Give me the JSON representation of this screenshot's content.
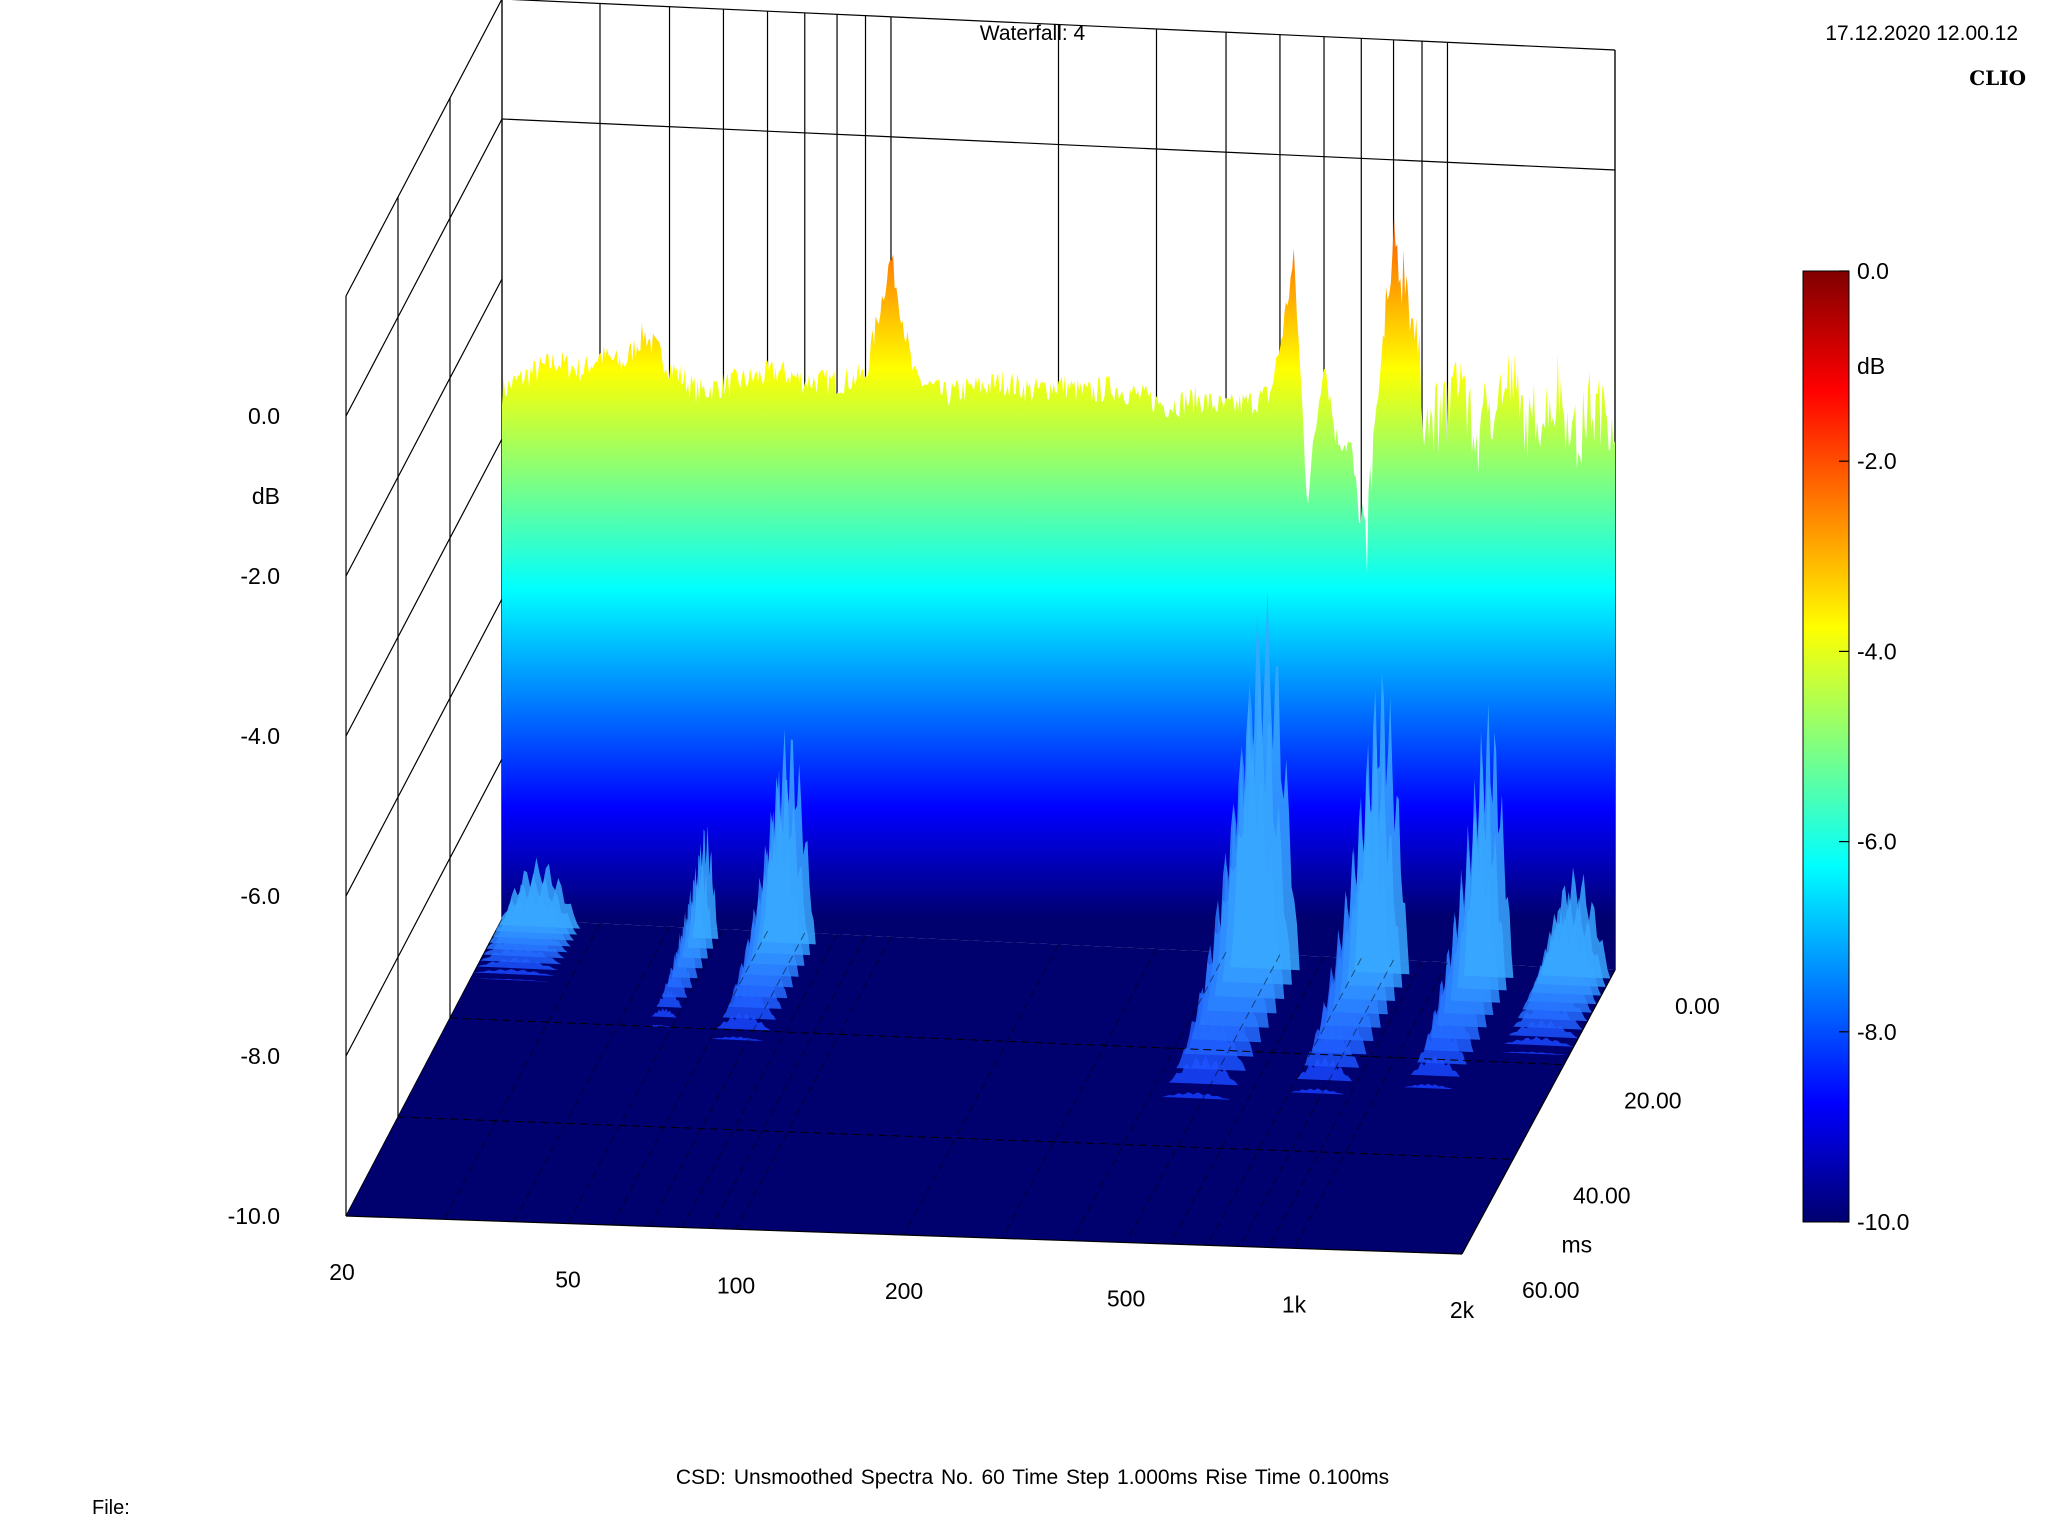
{
  "header": {
    "title": "Waterfall: 4",
    "timestamp": "17.12.2020 12.00.12",
    "logo": "CLIO"
  },
  "footer": {
    "status": "CSD:   Unsmoothed   Spectra No. 60   Time Step 1.000ms   Rise Time 0.100ms",
    "file_label": "File:"
  },
  "colors": {
    "grid": "#000000",
    "floor": "#00006e",
    "scale": [
      "#00006e",
      "#0000ff",
      "#0080ff",
      "#00ffff",
      "#80ff80",
      "#ffff00",
      "#ff8000",
      "#ff0000",
      "#800000"
    ]
  },
  "chart_data": {
    "type": "area",
    "subtype": "waterfall-3d",
    "z_axis": {
      "label": "dB",
      "range": [
        -10.0,
        0.0
      ],
      "ticks": [
        "0.0",
        "-2.0",
        "-4.0",
        "-6.0",
        "-8.0",
        "-10.0"
      ]
    },
    "x_axis": {
      "scale": "log",
      "range": [
        20,
        2000
      ],
      "ticks": [
        "20",
        "50",
        "100",
        "200",
        "500",
        "1k",
        "2k"
      ]
    },
    "y_axis": {
      "label": "ms",
      "range": [
        0,
        60
      ],
      "ticks": [
        "0.00",
        "20.00",
        "40.00",
        "60.00"
      ]
    },
    "colorbar": {
      "label": "dB",
      "range": [
        -10.0,
        0.0
      ],
      "ticks": [
        "0.0",
        "-2.0",
        "-4.0",
        "-6.0",
        "-8.0",
        "-10.0"
      ]
    },
    "initial_spectrum": {
      "freq": [
        20,
        22,
        25,
        28,
        30,
        33,
        36,
        40,
        45,
        50,
        56,
        63,
        70,
        80,
        90,
        100,
        110,
        125,
        140,
        160,
        180,
        200,
        225,
        250,
        280,
        315,
        355,
        400,
        450,
        480,
        500,
        530,
        560,
        600,
        630,
        670,
        710,
        750,
        800,
        850,
        900,
        950,
        1000,
        1060,
        1120,
        1200,
        1300,
        1400,
        1500,
        1600,
        1700,
        1800,
        2000
      ],
      "db": [
        -3.4,
        -3.2,
        -3.0,
        -3.1,
        -2.9,
        -3.0,
        -2.6,
        -3.0,
        -3.3,
        -3.2,
        -3.1,
        -3.0,
        -3.1,
        -3.1,
        -3.0,
        -1.5,
        -3.0,
        -3.2,
        -3.1,
        -3.0,
        -3.1,
        -3.0,
        -3.1,
        -3.0,
        -3.1,
        -3.2,
        -3.1,
        -3.2,
        -3.1,
        -3.0,
        -2.4,
        -1.3,
        -4.3,
        -2.5,
        -3.5,
        -3.6,
        -5.0,
        -3.0,
        -1.2,
        -1.5,
        -3.0,
        -3.3,
        -3.0,
        -2.6,
        -3.5,
        -2.9,
        -2.8,
        -3.3,
        -3.0,
        -2.8,
        -3.4,
        -3.0,
        -3.1
      ]
    },
    "decay_features": [
      {
        "freq_start": 20,
        "freq_end": 28,
        "peak_db": -9.0,
        "decay_ms": 12
      },
      {
        "freq_start": 45,
        "freq_end": 50,
        "peak_db": -8.3,
        "decay_ms": 20
      },
      {
        "freq_start": 60,
        "freq_end": 75,
        "peak_db": -6.8,
        "decay_ms": 22
      },
      {
        "freq_start": 420,
        "freq_end": 560,
        "peak_db": -4.5,
        "decay_ms": 30
      },
      {
        "freq_start": 700,
        "freq_end": 880,
        "peak_db": -5.5,
        "decay_ms": 28
      },
      {
        "freq_start": 1100,
        "freq_end": 1350,
        "peak_db": -6.0,
        "decay_ms": 26
      },
      {
        "freq_start": 1500,
        "freq_end": 2000,
        "peak_db": -8.4,
        "decay_ms": 18
      }
    ]
  }
}
